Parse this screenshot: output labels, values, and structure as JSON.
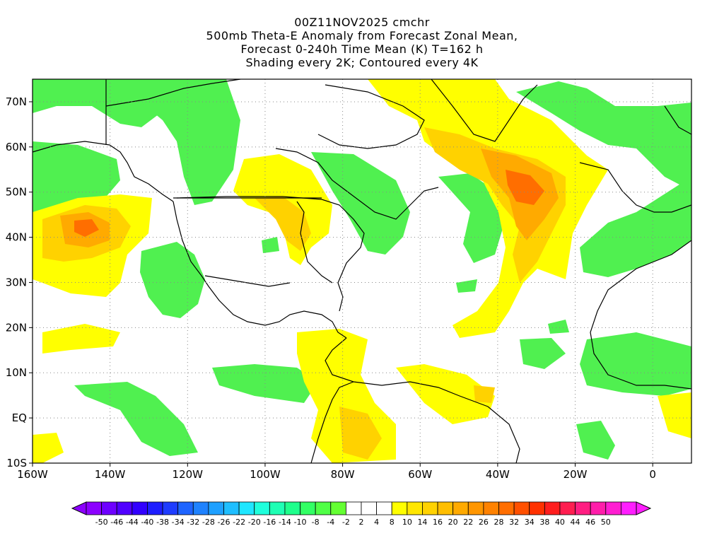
{
  "title": {
    "line1": "00Z11NOV2025 cmchr",
    "line2": "500mb Theta-E Anomaly from Forecast Zonal Mean,",
    "line3": "Forecast 0-240h Time Mean (K) T=162 h",
    "line4": "Shading every 2K; Contoured every 4K"
  },
  "map": {
    "lon_range": [
      -160,
      10
    ],
    "lat_range": [
      -10,
      75
    ],
    "lon_ticks": [
      "160W",
      "140W",
      "120W",
      "100W",
      "80W",
      "60W",
      "40W",
      "20W",
      "0"
    ],
    "lat_ticks": [
      "70N",
      "60N",
      "50N",
      "40N",
      "30N",
      "20N",
      "10N",
      "EQ",
      "10S"
    ],
    "gridlines": "dotted"
  },
  "colorbar": {
    "labels": [
      "-50",
      "-46",
      "-44",
      "-40",
      "-38",
      "-34",
      "-32",
      "-28",
      "-26",
      "-22",
      "-20",
      "-16",
      "-14",
      "-10",
      "-8",
      "-4",
      "-2",
      "2",
      "4",
      "8",
      "10",
      "14",
      "16",
      "20",
      "22",
      "26",
      "28",
      "32",
      "34",
      "38",
      "40",
      "44",
      "46",
      "50"
    ],
    "colors": [
      "#8c00ff",
      "#6e00ff",
      "#5000ff",
      "#3200ff",
      "#1e1eff",
      "#1e3cff",
      "#1e64ff",
      "#1e82ff",
      "#1ea0ff",
      "#1ebeff",
      "#1ee6ff",
      "#1effdc",
      "#1effb4",
      "#1eff8c",
      "#32ff64",
      "#50ff46",
      "#64ff32",
      "#ffffff",
      "#ffffff",
      "#ffffff",
      "#ffff00",
      "#ffe600",
      "#ffd200",
      "#ffbe00",
      "#ffaa00",
      "#ff9600",
      "#ff8200",
      "#ff6e00",
      "#ff5000",
      "#ff3200",
      "#ff1e1e",
      "#ff1e50",
      "#ff1e82",
      "#ff1eaa",
      "#ff1ed2",
      "#ff1eff"
    ]
  }
}
